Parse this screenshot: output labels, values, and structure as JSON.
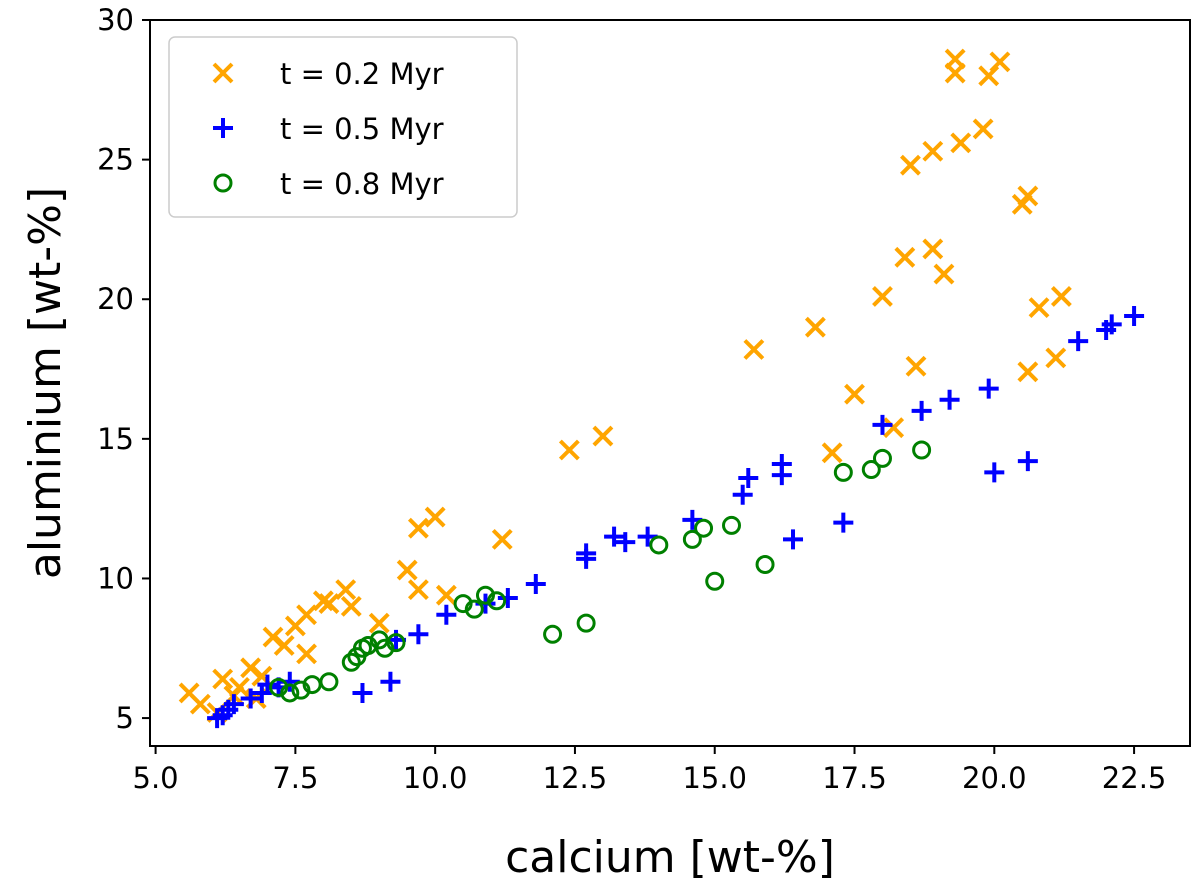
{
  "chart_data": {
    "type": "scatter",
    "title": "",
    "xlabel": "calcium [wt-%]",
    "ylabel": "aluminium [wt-%]",
    "xlim": [
      4.9,
      23.5
    ],
    "ylim": [
      4.0,
      30.0
    ],
    "xticks": [
      5.0,
      7.5,
      10.0,
      12.5,
      15.0,
      17.5,
      20.0,
      22.5
    ],
    "xtick_labels": [
      "5.0",
      "7.5",
      "10.0",
      "12.5",
      "15.0",
      "17.5",
      "20.0",
      "22.5"
    ],
    "yticks": [
      5,
      10,
      15,
      20,
      25,
      30
    ],
    "ytick_labels": [
      "5",
      "10",
      "15",
      "20",
      "25",
      "30"
    ],
    "grid": false,
    "legend_position": "top-left",
    "series": [
      {
        "name": "t = 0.2 Myr",
        "marker": "x",
        "color": "#FFA500",
        "points": [
          [
            5.6,
            5.9
          ],
          [
            5.8,
            5.5
          ],
          [
            6.1,
            5.2
          ],
          [
            6.2,
            6.4
          ],
          [
            6.4,
            5.8
          ],
          [
            6.5,
            6.1
          ],
          [
            6.7,
            6.8
          ],
          [
            6.9,
            6.5
          ],
          [
            6.8,
            5.7
          ],
          [
            7.1,
            7.9
          ],
          [
            7.3,
            7.6
          ],
          [
            7.5,
            8.3
          ],
          [
            7.7,
            8.7
          ],
          [
            7.7,
            7.3
          ],
          [
            8.0,
            9.2
          ],
          [
            8.1,
            9.1
          ],
          [
            8.4,
            9.6
          ],
          [
            8.5,
            9.0
          ],
          [
            9.0,
            8.4
          ],
          [
            9.5,
            10.3
          ],
          [
            9.7,
            11.8
          ],
          [
            9.7,
            9.6
          ],
          [
            10.0,
            12.2
          ],
          [
            10.2,
            9.4
          ],
          [
            11.2,
            11.4
          ],
          [
            12.4,
            14.6
          ],
          [
            13.0,
            15.1
          ],
          [
            15.7,
            18.2
          ],
          [
            16.8,
            19.0
          ],
          [
            17.1,
            14.5
          ],
          [
            17.5,
            16.6
          ],
          [
            18.0,
            20.1
          ],
          [
            18.2,
            15.4
          ],
          [
            18.4,
            21.5
          ],
          [
            18.5,
            24.8
          ],
          [
            18.6,
            17.6
          ],
          [
            18.9,
            25.3
          ],
          [
            18.9,
            21.8
          ],
          [
            19.1,
            20.9
          ],
          [
            19.3,
            28.6
          ],
          [
            19.3,
            28.1
          ],
          [
            19.4,
            25.6
          ],
          [
            19.8,
            26.1
          ],
          [
            19.9,
            28.0
          ],
          [
            20.1,
            28.5
          ],
          [
            20.5,
            23.4
          ],
          [
            20.6,
            23.7
          ],
          [
            20.6,
            17.4
          ],
          [
            20.8,
            19.7
          ],
          [
            21.1,
            17.9
          ],
          [
            21.2,
            20.1
          ]
        ]
      },
      {
        "name": "t = 0.5 Myr",
        "marker": "plus",
        "color": "#0000FF",
        "points": [
          [
            6.1,
            5.0
          ],
          [
            6.2,
            5.1
          ],
          [
            6.3,
            5.3
          ],
          [
            6.4,
            5.5
          ],
          [
            6.7,
            5.7
          ],
          [
            6.9,
            5.9
          ],
          [
            7.0,
            6.2
          ],
          [
            7.2,
            6.1
          ],
          [
            7.4,
            6.3
          ],
          [
            8.7,
            5.9
          ],
          [
            9.2,
            6.3
          ],
          [
            9.3,
            7.8
          ],
          [
            9.7,
            8.0
          ],
          [
            10.2,
            8.7
          ],
          [
            10.9,
            9.1
          ],
          [
            11.3,
            9.3
          ],
          [
            11.8,
            9.8
          ],
          [
            12.7,
            10.9
          ],
          [
            12.7,
            10.7
          ],
          [
            13.2,
            11.5
          ],
          [
            13.4,
            11.3
          ],
          [
            13.8,
            11.5
          ],
          [
            14.6,
            12.1
          ],
          [
            15.5,
            13.0
          ],
          [
            15.6,
            13.6
          ],
          [
            16.2,
            14.1
          ],
          [
            16.2,
            13.7
          ],
          [
            16.4,
            11.4
          ],
          [
            17.3,
            12.0
          ],
          [
            18.0,
            15.5
          ],
          [
            18.7,
            16.0
          ],
          [
            19.2,
            16.4
          ],
          [
            19.9,
            16.8
          ],
          [
            20.0,
            13.8
          ],
          [
            20.6,
            14.2
          ],
          [
            21.5,
            18.5
          ],
          [
            22.0,
            18.9
          ],
          [
            22.1,
            19.1
          ],
          [
            22.5,
            19.4
          ]
        ]
      },
      {
        "name": "t = 0.8 Myr",
        "marker": "circle",
        "color": "#008000",
        "points": [
          [
            7.2,
            6.1
          ],
          [
            7.4,
            5.9
          ],
          [
            7.6,
            6.0
          ],
          [
            7.8,
            6.2
          ],
          [
            8.1,
            6.3
          ],
          [
            8.5,
            7.0
          ],
          [
            8.6,
            7.2
          ],
          [
            8.7,
            7.5
          ],
          [
            8.8,
            7.6
          ],
          [
            9.0,
            7.8
          ],
          [
            9.1,
            7.5
          ],
          [
            9.3,
            7.7
          ],
          [
            10.5,
            9.1
          ],
          [
            10.7,
            8.9
          ],
          [
            10.9,
            9.4
          ],
          [
            11.1,
            9.2
          ],
          [
            12.1,
            8.0
          ],
          [
            12.7,
            8.4
          ],
          [
            14.0,
            11.2
          ],
          [
            14.6,
            11.4
          ],
          [
            14.8,
            11.8
          ],
          [
            15.0,
            9.9
          ],
          [
            15.3,
            11.9
          ],
          [
            15.9,
            10.5
          ],
          [
            17.3,
            13.8
          ],
          [
            17.8,
            13.9
          ],
          [
            18.0,
            14.3
          ],
          [
            18.7,
            14.6
          ]
        ]
      }
    ]
  }
}
